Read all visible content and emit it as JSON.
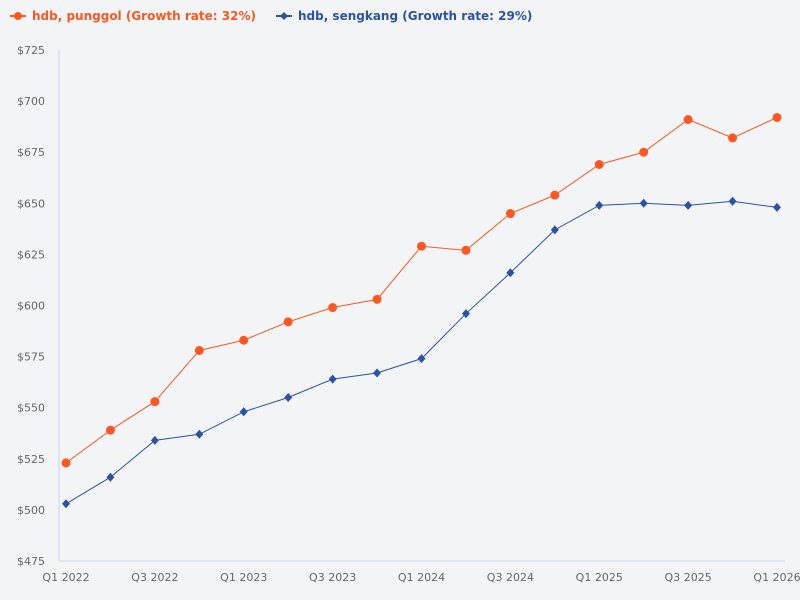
{
  "chart_data": {
    "type": "line",
    "title": "",
    "xlabel": "",
    "ylabel": "",
    "ylim": [
      475,
      725
    ],
    "yticks": [
      475,
      500,
      525,
      550,
      575,
      600,
      625,
      650,
      675,
      700,
      725
    ],
    "ytick_labels": [
      "$475",
      "$500",
      "$525",
      "$550",
      "$575",
      "$600",
      "$625",
      "$650",
      "$675",
      "$700",
      "$725"
    ],
    "x": [
      "Q1 2022",
      "Q2 2022",
      "Q3 2022",
      "Q4 2022",
      "Q1 2023",
      "Q2 2023",
      "Q3 2023",
      "Q4 2023",
      "Q1 2024",
      "Q2 2024",
      "Q3 2024",
      "Q4 2024",
      "Q1 2025",
      "Q2 2025",
      "Q3 2025",
      "Q4 2025",
      "Q1 2026"
    ],
    "xtick_labels": [
      "Q1 2022",
      "Q3 2022",
      "Q1 2023",
      "Q3 2023",
      "Q1 2024",
      "Q3 2024",
      "Q1 2025",
      "Q3 2025",
      "Q1 2026"
    ],
    "grid": false,
    "legend_position": "top-left",
    "series": [
      {
        "name": "hdb, punggol (Growth rate: 32%)",
        "color": "#ff5722",
        "marker": "circle",
        "values": [
          523,
          539,
          553,
          578,
          583,
          592,
          599,
          603,
          629,
          627,
          645,
          654,
          669,
          675,
          691,
          682,
          692
        ]
      },
      {
        "name": "hdb, sengkang (Growth rate: 29%)",
        "color": "#2b52a3",
        "marker": "diamond",
        "values": [
          503,
          516,
          534,
          537,
          548,
          555,
          564,
          567,
          574,
          596,
          616,
          637,
          649,
          650,
          649,
          651,
          648
        ]
      }
    ]
  }
}
